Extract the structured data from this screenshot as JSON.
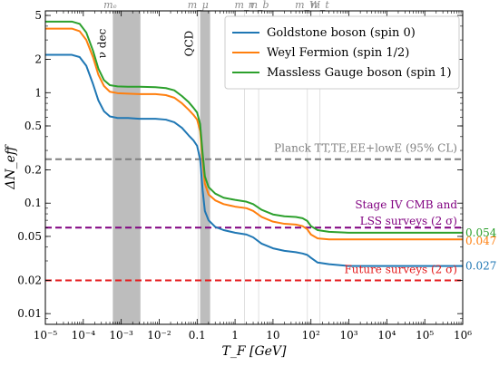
{
  "chart_data": {
    "type": "line",
    "xlabel": "T_F [GeV]",
    "ylabel": "ΔN_eff",
    "x_scale": "log",
    "y_scale": "log",
    "xlim": [
      1e-05,
      1000000.0
    ],
    "ylim": [
      0.008,
      5.5
    ],
    "x_ticks": [
      1e-05,
      0.0001,
      0.001,
      0.01,
      0.1,
      1,
      10,
      100,
      1000.0,
      10000.0,
      100000.0,
      1000000.0
    ],
    "x_tick_labels": [
      "10⁻⁵",
      "10⁻⁴",
      "10⁻³",
      "10⁻²",
      "0.1",
      "1",
      "10",
      "10²",
      "10³",
      "10⁴",
      "10⁵",
      "10⁶"
    ],
    "y_ticks": [
      0.01,
      0.02,
      0.05,
      0.1,
      0.2,
      0.5,
      1,
      2,
      5
    ],
    "y_tick_labels": [
      "0.01",
      "0.02",
      "0.05",
      "0.1",
      "0.2",
      "0.5",
      "1",
      "2",
      "5"
    ],
    "grid": false,
    "legend_position": "top-right",
    "series": [
      {
        "name": "Goldstone boson (spin 0)",
        "color": "#1f77b4",
        "x": [
          1e-05,
          5e-05,
          8e-05,
          0.00012,
          0.00018,
          0.00025,
          0.00035,
          0.0005,
          0.0008,
          0.0015,
          0.003,
          0.008,
          0.015,
          0.025,
          0.04,
          0.06,
          0.08,
          0.1,
          0.12,
          0.14,
          0.16,
          0.2,
          0.3,
          0.5,
          1,
          2,
          3,
          5,
          10,
          20,
          40,
          60,
          80,
          100,
          150,
          300,
          1000.0,
          10000.0,
          100000.0,
          1000000.0
        ],
        "y": [
          2.2,
          2.2,
          2.1,
          1.75,
          1.2,
          0.85,
          0.68,
          0.61,
          0.59,
          0.59,
          0.58,
          0.58,
          0.57,
          0.54,
          0.48,
          0.41,
          0.37,
          0.33,
          0.25,
          0.13,
          0.085,
          0.07,
          0.061,
          0.057,
          0.054,
          0.052,
          0.049,
          0.043,
          0.039,
          0.037,
          0.036,
          0.035,
          0.034,
          0.032,
          0.029,
          0.028,
          0.027,
          0.027,
          0.027,
          0.027
        ]
      },
      {
        "name": "Weyl Fermion (spin 1/2)",
        "color": "#ff7f0e",
        "x": [
          1e-05,
          5e-05,
          8e-05,
          0.00012,
          0.00018,
          0.00025,
          0.00035,
          0.0005,
          0.0008,
          0.0015,
          0.003,
          0.008,
          0.015,
          0.025,
          0.04,
          0.06,
          0.08,
          0.1,
          0.12,
          0.14,
          0.16,
          0.2,
          0.3,
          0.5,
          1,
          2,
          3,
          5,
          10,
          20,
          40,
          60,
          80,
          100,
          150,
          300,
          1000.0,
          10000.0,
          100000.0,
          1000000.0
        ],
        "y": [
          3.8,
          3.8,
          3.6,
          3.0,
          2.1,
          1.45,
          1.15,
          1.02,
          0.99,
          0.98,
          0.97,
          0.97,
          0.95,
          0.9,
          0.8,
          0.7,
          0.63,
          0.57,
          0.45,
          0.24,
          0.15,
          0.12,
          0.106,
          0.098,
          0.093,
          0.09,
          0.085,
          0.075,
          0.068,
          0.065,
          0.064,
          0.062,
          0.058,
          0.052,
          0.048,
          0.047,
          0.047,
          0.047,
          0.047,
          0.047
        ]
      },
      {
        "name": "Massless Gauge boson (spin 1)",
        "color": "#2ca02c",
        "x": [
          1e-05,
          5e-05,
          8e-05,
          0.00012,
          0.00018,
          0.00025,
          0.00035,
          0.0005,
          0.0008,
          0.0015,
          0.003,
          0.008,
          0.015,
          0.025,
          0.04,
          0.06,
          0.08,
          0.1,
          0.12,
          0.14,
          0.16,
          0.2,
          0.3,
          0.5,
          1,
          2,
          3,
          5,
          10,
          20,
          40,
          60,
          80,
          100,
          150,
          300,
          1000.0,
          10000.0,
          100000.0,
          1000000.0
        ],
        "y": [
          4.4,
          4.4,
          4.2,
          3.5,
          2.4,
          1.65,
          1.3,
          1.17,
          1.14,
          1.13,
          1.13,
          1.12,
          1.1,
          1.05,
          0.93,
          0.82,
          0.73,
          0.66,
          0.52,
          0.28,
          0.175,
          0.14,
          0.122,
          0.112,
          0.107,
          0.103,
          0.098,
          0.087,
          0.079,
          0.076,
          0.075,
          0.073,
          0.069,
          0.062,
          0.057,
          0.055,
          0.054,
          0.054,
          0.054,
          0.054
        ]
      }
    ],
    "hlines": [
      {
        "y": 0.25,
        "color": "#7f7f7f",
        "label": "Planck TT,TE,EE+lowE (95% CL)"
      },
      {
        "y": 0.06,
        "color": "#800080",
        "label_lines": [
          "Stage IV CMB and",
          "LSS surveys (2 σ)"
        ]
      },
      {
        "y": 0.02,
        "color": "#e41a1c",
        "label": "Future surveys (2 σ)"
      }
    ],
    "bands": [
      {
        "x0": 0.0006,
        "x1": 0.0032,
        "label": "ν dec"
      },
      {
        "x0": 0.12,
        "x1": 0.22,
        "label": "QCD"
      }
    ],
    "particle_masses": [
      {
        "label": "mₑ",
        "x": 0.000511,
        "line": false
      },
      {
        "label": "m_μ",
        "x": 0.1057,
        "line": true
      },
      {
        "label": "m_τ",
        "x": 1.777,
        "line": true
      },
      {
        "label": "m_b",
        "x": 4.18,
        "line": true
      },
      {
        "label": "m_W",
        "x": 80.4,
        "line": true
      },
      {
        "label": "m_t",
        "x": 173,
        "line": true
      }
    ],
    "end_labels": [
      {
        "text": "0.054",
        "color": "#2ca02c"
      },
      {
        "text": "0.047",
        "color": "#ff7f0e"
      },
      {
        "text": "0.027",
        "color": "#1f77b4"
      }
    ]
  }
}
